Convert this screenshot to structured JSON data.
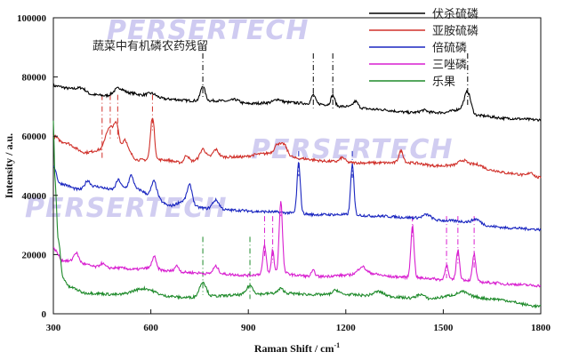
{
  "chart_data": {
    "type": "line",
    "title": "",
    "annotation": "蔬菜中有机磷农药残留",
    "watermark": "PERSERTECH",
    "xlabel": "Raman Shift / cm",
    "xlabel_sup": "-1",
    "ylabel": "Intensity / a.u.",
    "xlim": [
      300,
      1800
    ],
    "ylim": [
      0,
      100000
    ],
    "xticks": [
      300,
      600,
      900,
      1200,
      1500,
      1800
    ],
    "xtick_labels": [
      "300",
      "600",
      "900",
      "1200",
      "1500",
      "1800"
    ],
    "yticks": [
      0,
      20000,
      40000,
      60000,
      80000,
      100000
    ],
    "ytick_labels": [
      "0",
      "20000",
      "40000",
      "60000",
      "80000",
      "100000"
    ],
    "legend_position": "top-right",
    "series": [
      {
        "name": "伏杀硫磷",
        "color": "#000000",
        "baseline": [
          [
            300,
            77000
          ],
          [
            360,
            76000
          ],
          [
            420,
            74000
          ],
          [
            480,
            73500
          ],
          [
            540,
            74500
          ],
          [
            600,
            73000
          ],
          [
            660,
            72500
          ],
          [
            720,
            72000
          ],
          [
            800,
            72000
          ],
          [
            900,
            71000
          ],
          [
            1000,
            71500
          ],
          [
            1100,
            71000
          ],
          [
            1200,
            70000
          ],
          [
            1300,
            69000
          ],
          [
            1400,
            68000
          ],
          [
            1500,
            68000
          ],
          [
            1550,
            69000
          ],
          [
            1600,
            67000
          ],
          [
            1700,
            66000
          ],
          [
            1800,
            65500
          ]
        ],
        "peaks": [
          [
            390,
            1200,
            12
          ],
          [
            500,
            2500,
            15
          ],
          [
            600,
            1500,
            15
          ],
          [
            760,
            5000,
            7
          ],
          [
            860,
            1000,
            12
          ],
          [
            990,
            1000,
            10
          ],
          [
            1100,
            3000,
            6
          ],
          [
            1160,
            3500,
            6
          ],
          [
            1230,
            2000,
            7
          ],
          [
            1440,
            800,
            10
          ],
          [
            1575,
            7000,
            10
          ]
        ],
        "markers": [
          760,
          1100,
          1160,
          1575
        ],
        "marker_top": 88000
      },
      {
        "name": "亚胺硫磷",
        "color": "#d0302a",
        "baseline": [
          [
            300,
            60000
          ],
          [
            330,
            58000
          ],
          [
            400,
            54500
          ],
          [
            450,
            55500
          ],
          [
            520,
            56000
          ],
          [
            560,
            52000
          ],
          [
            640,
            52000
          ],
          [
            700,
            51000
          ],
          [
            780,
            53000
          ],
          [
            880,
            53000
          ],
          [
            940,
            54000
          ],
          [
            1000,
            55000
          ],
          [
            1050,
            52500
          ],
          [
            1150,
            51500
          ],
          [
            1230,
            51000
          ],
          [
            1300,
            51000
          ],
          [
            1400,
            51000
          ],
          [
            1480,
            50000
          ],
          [
            1600,
            50500
          ],
          [
            1650,
            48500
          ],
          [
            1700,
            47500
          ],
          [
            1800,
            46000
          ]
        ],
        "peaks": [
          [
            465,
            5000,
            8
          ],
          [
            480,
            6000,
            8
          ],
          [
            495,
            7500,
            7
          ],
          [
            520,
            3000,
            6
          ],
          [
            605,
            14500,
            6
          ],
          [
            710,
            2500,
            7
          ],
          [
            760,
            3000,
            8
          ],
          [
            800,
            2500,
            8
          ],
          [
            990,
            2500,
            8
          ],
          [
            1010,
            2500,
            8
          ],
          [
            1190,
            1500,
            8
          ],
          [
            1370,
            4000,
            7
          ],
          [
            1560,
            1500,
            12
          ],
          [
            1770,
            1500,
            8
          ]
        ],
        "markers": [
          450,
          475,
          498,
          605
        ],
        "marker_top": 74000
      },
      {
        "name": "倍硫磷",
        "color": "#1a26c0",
        "baseline": [
          [
            300,
            50000
          ],
          [
            320,
            44000
          ],
          [
            380,
            42000
          ],
          [
            430,
            43000
          ],
          [
            480,
            42000
          ],
          [
            520,
            42500
          ],
          [
            560,
            42000
          ],
          [
            600,
            40000
          ],
          [
            660,
            36500
          ],
          [
            700,
            38000
          ],
          [
            740,
            36000
          ],
          [
            780,
            35500
          ],
          [
            850,
            35000
          ],
          [
            950,
            34500
          ],
          [
            1050,
            34000
          ],
          [
            1100,
            33500
          ],
          [
            1200,
            33500
          ],
          [
            1300,
            33000
          ],
          [
            1400,
            32500
          ],
          [
            1500,
            31500
          ],
          [
            1600,
            31000
          ],
          [
            1650,
            29500
          ],
          [
            1700,
            29000
          ],
          [
            1800,
            28500
          ]
        ],
        "peaks": [
          [
            405,
            2500,
            8
          ],
          [
            500,
            3000,
            7
          ],
          [
            540,
            4500,
            7
          ],
          [
            610,
            5000,
            8
          ],
          [
            720,
            6500,
            8
          ],
          [
            800,
            3000,
            10
          ],
          [
            1055,
            17000,
            5
          ],
          [
            1220,
            17000,
            5
          ],
          [
            1450,
            1500,
            12
          ],
          [
            1600,
            1000,
            10
          ]
        ],
        "markers": [
          1055,
          1220
        ],
        "marker_top": 55000
      },
      {
        "name": "三唑磷",
        "color": "#d81fd0",
        "baseline": [
          [
            300,
            22000
          ],
          [
            330,
            18000
          ],
          [
            380,
            17000
          ],
          [
            450,
            15500
          ],
          [
            500,
            15500
          ],
          [
            550,
            15000
          ],
          [
            600,
            15500
          ],
          [
            650,
            14500
          ],
          [
            700,
            14000
          ],
          [
            800,
            13500
          ],
          [
            900,
            13000
          ],
          [
            950,
            13500
          ],
          [
            1000,
            14000
          ],
          [
            1050,
            13000
          ],
          [
            1100,
            12500
          ],
          [
            1200,
            13000
          ],
          [
            1250,
            14000
          ],
          [
            1350,
            12500
          ],
          [
            1450,
            12000
          ],
          [
            1500,
            11500
          ],
          [
            1550,
            11500
          ],
          [
            1650,
            10500
          ],
          [
            1700,
            10000
          ],
          [
            1800,
            9500
          ]
        ],
        "peaks": [
          [
            370,
            3500,
            8
          ],
          [
            450,
            1500,
            8
          ],
          [
            610,
            4000,
            6
          ],
          [
            680,
            2000,
            7
          ],
          [
            800,
            2500,
            8
          ],
          [
            950,
            9500,
            5
          ],
          [
            975,
            8000,
            4
          ],
          [
            1000,
            24000,
            5
          ],
          [
            1100,
            2000,
            6
          ],
          [
            1250,
            2000,
            10
          ],
          [
            1405,
            17500,
            5
          ],
          [
            1510,
            5000,
            5
          ],
          [
            1545,
            10000,
            5
          ],
          [
            1595,
            9000,
            5
          ]
        ],
        "markers": [
          950,
          975,
          1000,
          1405,
          1510,
          1545,
          1595
        ],
        "marker_top": 33000
      },
      {
        "name": "乐果",
        "color": "#1e8a2a",
        "baseline": [
          [
            300,
            65000
          ],
          [
            305,
            45000
          ],
          [
            315,
            25000
          ],
          [
            330,
            12000
          ],
          [
            350,
            9000
          ],
          [
            400,
            7000
          ],
          [
            500,
            6500
          ],
          [
            580,
            8500
          ],
          [
            650,
            6000
          ],
          [
            700,
            5500
          ],
          [
            800,
            6000
          ],
          [
            900,
            6500
          ],
          [
            1000,
            7000
          ],
          [
            1100,
            6500
          ],
          [
            1200,
            6500
          ],
          [
            1300,
            6000
          ],
          [
            1450,
            5000
          ],
          [
            1550,
            6500
          ],
          [
            1650,
            5000
          ],
          [
            1800,
            2500
          ]
        ],
        "peaks": [
          [
            760,
            5000,
            10
          ],
          [
            905,
            3000,
            10
          ],
          [
            1000,
            1500,
            8
          ],
          [
            1170,
            1500,
            10
          ],
          [
            1300,
            1500,
            15
          ],
          [
            1430,
            1500,
            12
          ],
          [
            1560,
            1000,
            12
          ]
        ],
        "markers": [
          760,
          905
        ],
        "marker_top": 26000
      }
    ]
  }
}
